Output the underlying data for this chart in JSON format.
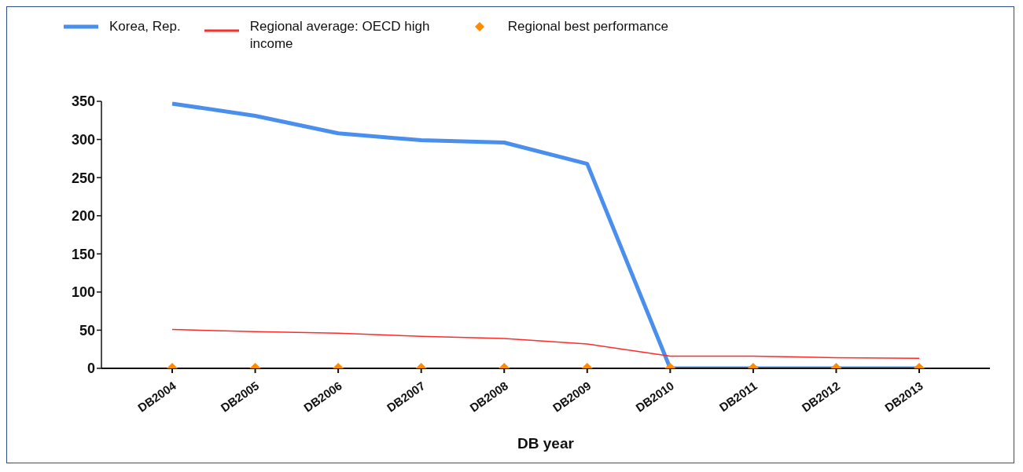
{
  "chart_data": {
    "type": "line",
    "xlabel": "DB year",
    "categories": [
      "DB2004",
      "DB2005",
      "DB2006",
      "DB2007",
      "DB2008",
      "DB2009",
      "DB2010",
      "DB2011",
      "DB2012",
      "DB2013"
    ],
    "series": [
      {
        "name": "Korea, Rep.",
        "color": "#4a8fec",
        "marker": "none",
        "values": [
          347,
          331,
          308,
          299,
          296,
          268,
          0,
          0,
          0,
          0
        ]
      },
      {
        "name": "Regional average: OECD high income",
        "color": "#ff2a2a",
        "marker": "none",
        "values": [
          51,
          48,
          46,
          42,
          39,
          32,
          16,
          16,
          14,
          13
        ]
      },
      {
        "name": "Regional best performance",
        "type": "scatter",
        "color": "#ff8c00",
        "marker": "diamond",
        "values": [
          0,
          0,
          0,
          0,
          0,
          0,
          0,
          0,
          0,
          0
        ]
      }
    ],
    "ylim": [
      0,
      350
    ],
    "yticks": [
      0,
      50,
      100,
      150,
      200,
      250,
      300,
      350
    ],
    "grid": false,
    "legend": "top left"
  }
}
